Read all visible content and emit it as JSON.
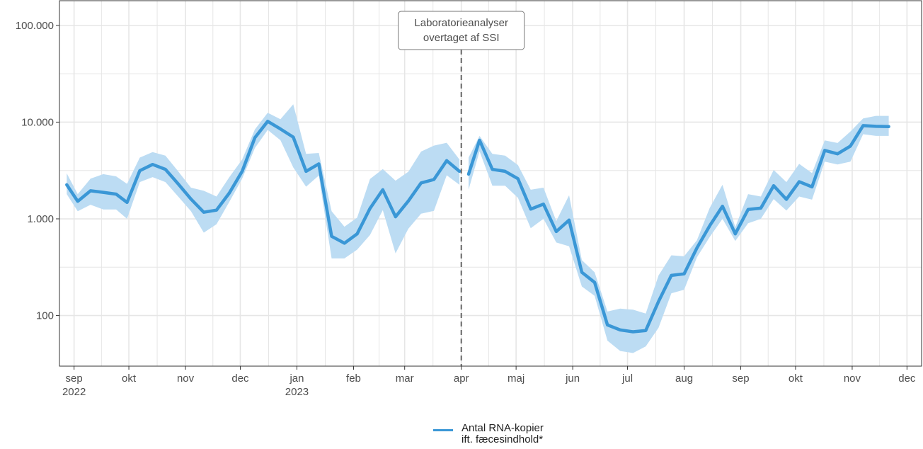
{
  "chart_data": {
    "type": "line",
    "title": "",
    "xlabel": "",
    "ylabel": "",
    "y_scale": "log10",
    "ylim": [
      30,
      180000
    ],
    "xlim": [
      "2022-08-24",
      "2023-12-09"
    ],
    "grid": true,
    "legend_position": "bottom",
    "colors": {
      "line": "#3a97d6",
      "band": "#bcdcf3",
      "grid": "#e6e6e6",
      "axis": "#333333",
      "vline": "#666666"
    },
    "y_ticks": [
      {
        "value": 100,
        "label": "100"
      },
      {
        "value": 1000,
        "label": "1.000"
      },
      {
        "value": 10000,
        "label": "10.000"
      },
      {
        "value": 100000,
        "label": "100.000"
      }
    ],
    "x_ticks": [
      {
        "date": "2022-09-01",
        "label": "sep",
        "sub": "2022"
      },
      {
        "date": "2022-10-01",
        "label": "okt",
        "sub": ""
      },
      {
        "date": "2022-11-01",
        "label": "nov",
        "sub": ""
      },
      {
        "date": "2022-12-01",
        "label": "dec",
        "sub": ""
      },
      {
        "date": "2023-01-01",
        "label": "jan",
        "sub": "2023"
      },
      {
        "date": "2023-02-01",
        "label": "feb",
        "sub": ""
      },
      {
        "date": "2023-03-01",
        "label": "mar",
        "sub": ""
      },
      {
        "date": "2023-04-01",
        "label": "apr",
        "sub": ""
      },
      {
        "date": "2023-05-01",
        "label": "maj",
        "sub": ""
      },
      {
        "date": "2023-06-01",
        "label": "jun",
        "sub": ""
      },
      {
        "date": "2023-07-01",
        "label": "jul",
        "sub": ""
      },
      {
        "date": "2023-08-01",
        "label": "aug",
        "sub": ""
      },
      {
        "date": "2023-09-01",
        "label": "sep",
        "sub": ""
      },
      {
        "date": "2023-10-01",
        "label": "okt",
        "sub": ""
      },
      {
        "date": "2023-11-01",
        "label": "nov",
        "sub": ""
      },
      {
        "date": "2023-12-01",
        "label": "dec",
        "sub": ""
      }
    ],
    "annotation": {
      "date": "2023-04-01",
      "lines": [
        "Laboratorieanalyser",
        "overtaget af SSI"
      ]
    },
    "series": [
      {
        "name": "Antal RNA-kopier ift. fæcesindhold*",
        "segments": [
          {
            "x": [
              "2022-08-28",
              "2022-09-03",
              "2022-09-10",
              "2022-09-17",
              "2022-09-24",
              "2022-09-30",
              "2022-10-07",
              "2022-10-14",
              "2022-10-21",
              "2022-10-28",
              "2022-11-04",
              "2022-11-11",
              "2022-11-18",
              "2022-11-25",
              "2022-12-02",
              "2022-12-09",
              "2022-12-16",
              "2022-12-23",
              "2022-12-30",
              "2023-01-06",
              "2023-01-13",
              "2023-01-20",
              "2023-01-27",
              "2023-02-03",
              "2023-02-10",
              "2023-02-17",
              "2023-02-24",
              "2023-03-03",
              "2023-03-10",
              "2023-03-17",
              "2023-03-24",
              "2023-03-31"
            ],
            "y": [
              2250,
              1520,
              1950,
              1880,
              1800,
              1480,
              3150,
              3650,
              3250,
              2300,
              1600,
              1170,
              1230,
              1850,
              3100,
              6900,
              10200,
              8500,
              7000,
              3100,
              3700,
              660,
              560,
              700,
              1280,
              2000,
              1050,
              1530,
              2350,
              2550,
              4000,
              3100
            ],
            "lower": [
              1800,
              1200,
              1400,
              1250,
              1250,
              1000,
              2400,
              2700,
              2400,
              1700,
              1200,
              720,
              880,
              1500,
              2600,
              5400,
              8300,
              6500,
              3400,
              2150,
              2800,
              390,
              390,
              480,
              680,
              1230,
              440,
              790,
              1130,
              1210,
              2820,
              2250
            ],
            "upper": [
              2950,
              1800,
              2600,
              2900,
              2750,
              2300,
              4300,
              4900,
              4500,
              3100,
              2100,
              1950,
              1700,
              2700,
              4100,
              8400,
              12500,
              10700,
              15300,
              4700,
              4800,
              1200,
              830,
              1030,
              2580,
              3270,
              2480,
              3070,
              4960,
              5720,
              6120,
              4110
            ]
          },
          {
            "x": [
              "2023-04-05",
              "2023-04-11",
              "2023-04-18",
              "2023-04-25",
              "2023-05-02",
              "2023-05-09",
              "2023-05-16",
              "2023-05-23",
              "2023-05-30",
              "2023-06-06",
              "2023-06-13",
              "2023-06-20",
              "2023-06-27",
              "2023-07-04",
              "2023-07-11",
              "2023-07-18",
              "2023-07-25",
              "2023-08-01",
              "2023-08-08",
              "2023-08-15",
              "2023-08-22",
              "2023-08-29",
              "2023-09-05",
              "2023-09-12",
              "2023-09-19",
              "2023-09-26",
              "2023-10-03",
              "2023-10-10",
              "2023-10-17",
              "2023-10-24",
              "2023-10-31",
              "2023-11-07",
              "2023-11-14",
              "2023-11-21"
            ],
            "y": [
              2900,
              6500,
              3250,
              3100,
              2600,
              1260,
              1420,
              740,
              970,
              280,
              220,
              80,
              71,
              68,
              70,
              140,
              260,
              270,
              500,
              850,
              1350,
              700,
              1250,
              1290,
              2200,
              1590,
              2420,
              2140,
              5100,
              4700,
              5650,
              9200,
              9050,
              9000
            ],
            "lower": [
              2000,
              5000,
              2200,
              2200,
              1650,
              800,
              1000,
              570,
              520,
              200,
              160,
              55,
              43,
              41,
              48,
              75,
              170,
              185,
              400,
              650,
              1000,
              590,
              900,
              1000,
              1600,
              1220,
              1700,
              1580,
              3900,
              3650,
              3900,
              7500,
              7200,
              7200
            ],
            "upper": [
              4300,
              7200,
              4700,
              4500,
              3600,
              2000,
              2100,
              950,
              1750,
              375,
              280,
              110,
              118,
              115,
              105,
              260,
              420,
              410,
              600,
              1300,
              2250,
              820,
              1800,
              1700,
              3200,
              2400,
              3700,
              2970,
              6480,
              6090,
              8000,
              10900,
              11600,
              11600
            ]
          }
        ]
      }
    ]
  }
}
